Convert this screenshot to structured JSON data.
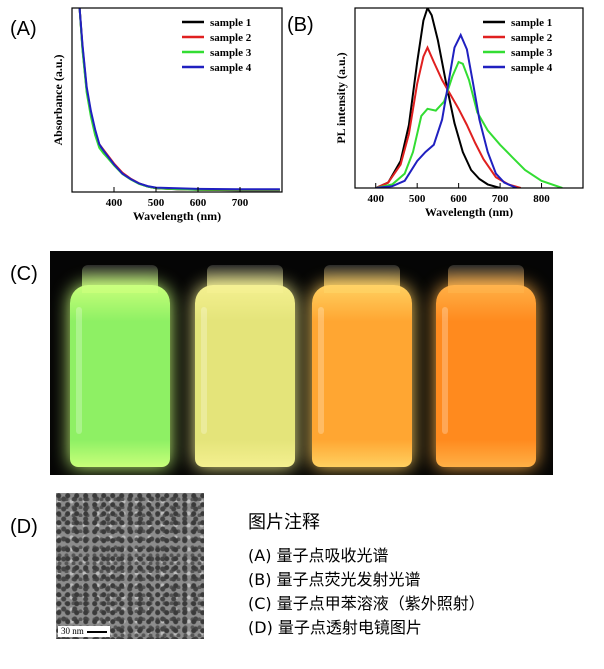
{
  "panels": {
    "a": "(A)",
    "b": "(B)",
    "c": "(C)",
    "d": "(D)"
  },
  "chart_data": [
    {
      "type": "line",
      "title": "",
      "xlabel": "Wavelength (nm)",
      "ylabel": "Absorbance (a.u.)",
      "xlim": [
        300,
        800
      ],
      "ylim": [
        0,
        1.0
      ],
      "xticks": [
        400,
        500,
        600,
        700
      ],
      "legend_position": "top-right",
      "series": [
        {
          "name": "sample 1",
          "color": "#000000",
          "x": [
            318,
            325,
            335,
            345,
            355,
            365,
            375,
            385,
            400,
            420,
            440,
            460,
            480,
            500,
            550,
            600,
            700,
            795
          ],
          "y": [
            1.0,
            0.78,
            0.55,
            0.42,
            0.32,
            0.25,
            0.22,
            0.19,
            0.15,
            0.1,
            0.07,
            0.045,
            0.03,
            0.02,
            0.015,
            0.012,
            0.01,
            0.01
          ]
        },
        {
          "name": "sample 2",
          "color": "#e02020",
          "x": [
            318,
            325,
            335,
            345,
            355,
            365,
            375,
            385,
            400,
            420,
            440,
            460,
            480,
            500,
            550,
            600,
            700,
            795
          ],
          "y": [
            1.0,
            0.79,
            0.56,
            0.43,
            0.33,
            0.26,
            0.23,
            0.2,
            0.155,
            0.105,
            0.072,
            0.047,
            0.031,
            0.021,
            0.016,
            0.013,
            0.011,
            0.011
          ]
        },
        {
          "name": "sample 3",
          "color": "#33dd33",
          "x": [
            318,
            325,
            335,
            345,
            355,
            365,
            375,
            385,
            400,
            420,
            440,
            460,
            480,
            500,
            550,
            600,
            700,
            795
          ],
          "y": [
            1.0,
            0.77,
            0.54,
            0.41,
            0.31,
            0.24,
            0.21,
            0.185,
            0.145,
            0.098,
            0.068,
            0.044,
            0.03,
            0.021,
            0.016,
            0.013,
            0.012,
            0.012
          ]
        },
        {
          "name": "sample 4",
          "color": "#2020c0",
          "x": [
            318,
            325,
            335,
            345,
            355,
            365,
            375,
            385,
            400,
            420,
            440,
            460,
            480,
            500,
            550,
            600,
            700,
            795
          ],
          "y": [
            1.0,
            0.8,
            0.57,
            0.44,
            0.34,
            0.26,
            0.225,
            0.195,
            0.15,
            0.1,
            0.07,
            0.046,
            0.032,
            0.024,
            0.02,
            0.017,
            0.015,
            0.015
          ]
        }
      ]
    },
    {
      "type": "line",
      "title": "",
      "xlabel": "Wavelength (nm)",
      "ylabel": "PL intensity (a.u.)",
      "xlim": [
        350,
        900
      ],
      "ylim": [
        0,
        1.0
      ],
      "xticks": [
        400,
        500,
        600,
        700,
        800
      ],
      "legend_position": "top-right",
      "series": [
        {
          "name": "sample 1",
          "color": "#000000",
          "x": [
            400,
            430,
            460,
            480,
            500,
            515,
            525,
            535,
            550,
            570,
            590,
            610,
            630,
            650,
            670,
            700
          ],
          "y": [
            0,
            0.03,
            0.15,
            0.35,
            0.7,
            0.93,
            1.0,
            0.96,
            0.82,
            0.58,
            0.36,
            0.2,
            0.1,
            0.05,
            0.02,
            0
          ]
        },
        {
          "name": "sample 2",
          "color": "#e02020",
          "x": [
            400,
            430,
            460,
            480,
            500,
            515,
            525,
            540,
            560,
            580,
            600,
            620,
            640,
            660,
            690,
            720,
            750
          ],
          "y": [
            0,
            0.03,
            0.13,
            0.3,
            0.58,
            0.73,
            0.78,
            0.7,
            0.6,
            0.52,
            0.44,
            0.35,
            0.25,
            0.16,
            0.06,
            0.02,
            0
          ]
        },
        {
          "name": "sample 3",
          "color": "#33dd33",
          "x": [
            400,
            440,
            470,
            490,
            510,
            525,
            545,
            565,
            585,
            600,
            610,
            625,
            645,
            670,
            700,
            730,
            760,
            800,
            850
          ],
          "y": [
            0,
            0.02,
            0.08,
            0.2,
            0.4,
            0.44,
            0.43,
            0.48,
            0.62,
            0.7,
            0.69,
            0.6,
            0.42,
            0.32,
            0.24,
            0.17,
            0.1,
            0.04,
            0
          ]
        },
        {
          "name": "sample 4",
          "color": "#2020c0",
          "x": [
            400,
            440,
            470,
            500,
            520,
            540,
            560,
            575,
            590,
            605,
            620,
            635,
            650,
            670,
            690,
            710,
            740
          ],
          "y": [
            0,
            0.01,
            0.04,
            0.15,
            0.2,
            0.24,
            0.38,
            0.58,
            0.78,
            0.85,
            0.77,
            0.58,
            0.38,
            0.2,
            0.08,
            0.03,
            0
          ]
        }
      ]
    }
  ],
  "photo": {
    "vials": [
      {
        "label": "vial-1",
        "color": "#8ef064",
        "glow": "#c8ff7a"
      },
      {
        "label": "vial-2",
        "color": "#e4e47a",
        "glow": "#f4f090"
      },
      {
        "label": "vial-3",
        "color": "#ffa632",
        "glow": "#ffd060"
      },
      {
        "label": "vial-4",
        "color": "#ff8a1e",
        "glow": "#ffb046"
      }
    ]
  },
  "tem": {
    "scale": "30 nm"
  },
  "notes": {
    "title": "图片注释",
    "lines": [
      "(A) 量子点吸收光谱",
      "(B) 量子点荧光发射光谱",
      "(C) 量子点甲苯溶液（紫外照射）",
      "(D) 量子点透射电镜图片"
    ]
  }
}
